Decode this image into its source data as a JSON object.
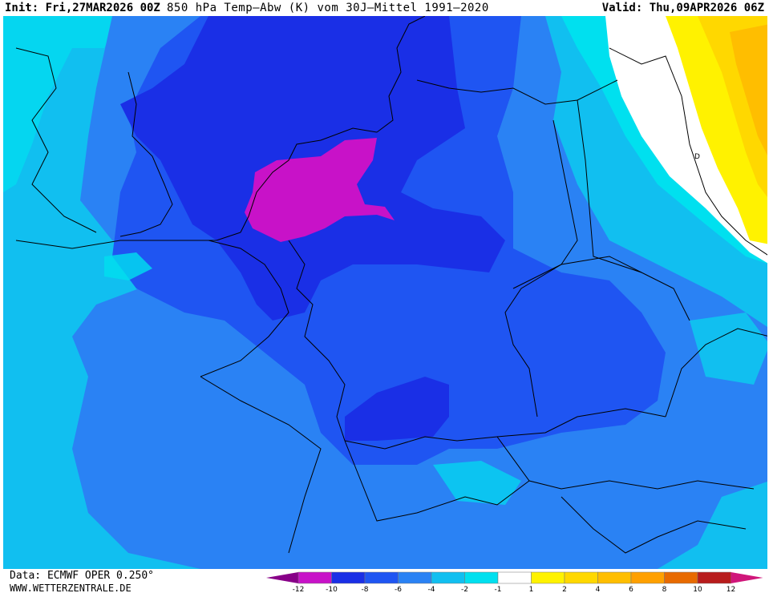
{
  "header": {
    "init": "Init: Fri,27MAR2026 00Z",
    "title": "850 hPa Temp—Abw (K) vom 30J—Mittel 1991—2020",
    "valid": "Valid: Thu,09APR2026 06Z"
  },
  "footer": {
    "source": "Data: ECMWF OPER 0.250°",
    "site": "WWW.WETTERZENTRALE.DE"
  },
  "map": {
    "label_d": "D"
  },
  "legend": {
    "ticks": [
      "-12",
      "-10",
      "-8",
      "-6",
      "-4",
      "-2",
      "-1",
      "1",
      "2",
      "4",
      "6",
      "8",
      "10",
      "12"
    ],
    "colors": [
      "#880088",
      "#c812c8",
      "#1a2fe6",
      "#1f55f2",
      "#2a82f4",
      "#11bff0",
      "#00e0ef",
      "#ffffff",
      "#fff200",
      "#ffd800",
      "#ffbe00",
      "#ffa000",
      "#e86a00",
      "#b81c1c",
      "#d0167a"
    ]
  },
  "colors": {
    "below_minus_10": "#c812c8",
    "minus_10_to_8": "#1a2fe6",
    "minus_8_to_6": "#1f55f2",
    "minus_6_to_4": "#2a82f4",
    "minus_4_to_2": "#11bff0",
    "minus_2_to_1": "#00e0ef",
    "neutral": "#ffffff",
    "plus_1_to_2": "#fff200",
    "plus_2_to_4": "#ffd800",
    "plus_4_to_6": "#ffbe00"
  }
}
